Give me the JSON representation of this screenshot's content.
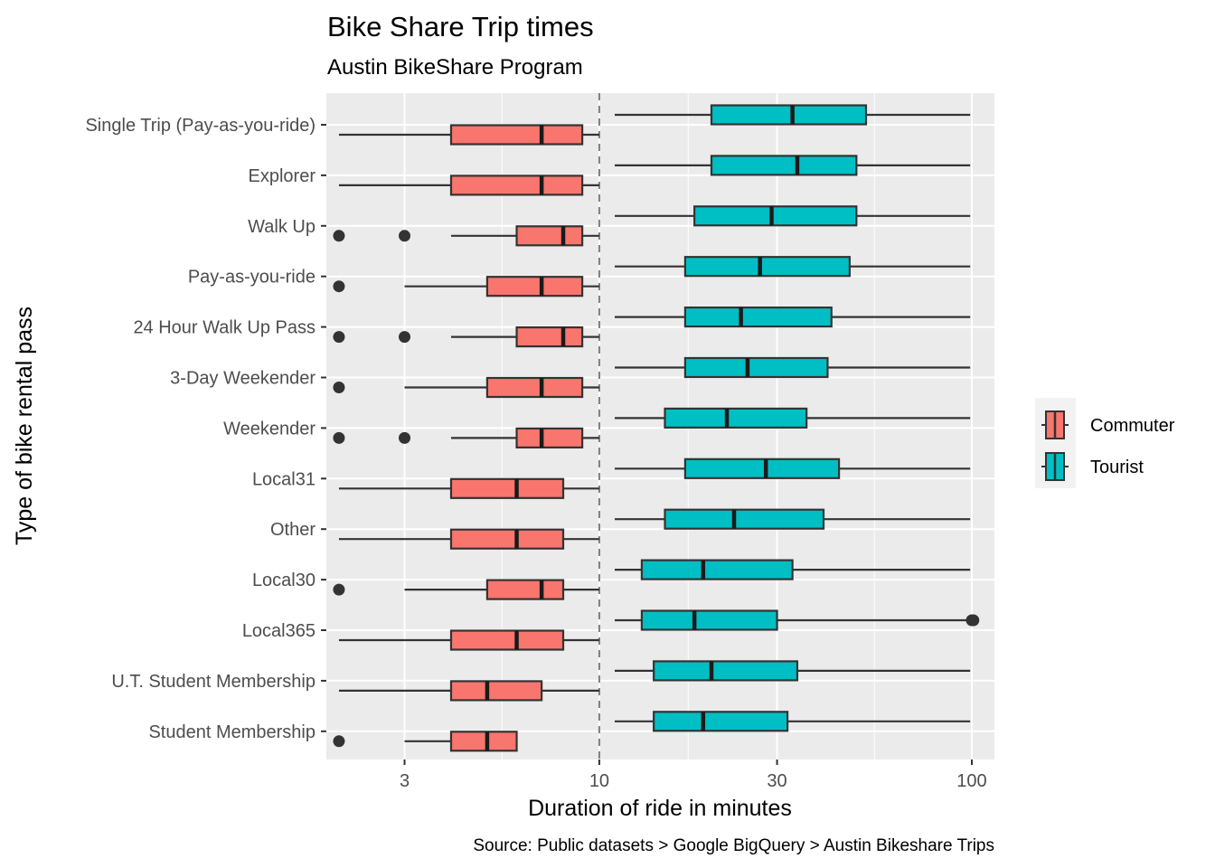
{
  "chart_data": {
    "type": "boxplot",
    "title": "Bike Share Trip times",
    "subtitle": "Austin BikeShare Program",
    "caption": "Source: Public datasets > Google BigQuery > Austin Bikeshare Trips",
    "xlabel": "Duration of ride in minutes",
    "ylabel": "Type of bike rental pass",
    "x_scale": "log10",
    "xlim": [
      1.85,
      115
    ],
    "x_ticks": [
      3,
      10,
      30,
      100
    ],
    "x_tick_labels": [
      "3",
      "10",
      "30",
      "100"
    ],
    "reference_line": {
      "x": 10,
      "style": "dashed"
    },
    "grid": true,
    "legend_position": "right",
    "categories": [
      "Single Trip (Pay-as-you-ride)",
      "Explorer",
      "Walk Up",
      "Pay-as-you-ride",
      "24 Hour Walk Up Pass",
      "3-Day Weekender",
      "Weekender",
      "Local31",
      "Other",
      "Local30",
      "Local365",
      "U.T. Student Membership",
      "Student Membership"
    ],
    "series": [
      {
        "name": "Commuter",
        "color": "#F8766D",
        "boxes": [
          {
            "whisker_low": 2,
            "q1": 4,
            "median": 7,
            "q3": 9,
            "whisker_high": 10,
            "outliers": []
          },
          {
            "whisker_low": 2,
            "q1": 4,
            "median": 7,
            "q3": 9,
            "whisker_high": 10,
            "outliers": []
          },
          {
            "whisker_low": 4,
            "q1": 6,
            "median": 8,
            "q3": 9,
            "whisker_high": 10,
            "outliers": [
              2,
              3
            ]
          },
          {
            "whisker_low": 3,
            "q1": 5,
            "median": 7,
            "q3": 9,
            "whisker_high": 10,
            "outliers": [
              2
            ]
          },
          {
            "whisker_low": 4,
            "q1": 6,
            "median": 8,
            "q3": 9,
            "whisker_high": 10,
            "outliers": [
              2,
              3
            ]
          },
          {
            "whisker_low": 3,
            "q1": 5,
            "median": 7,
            "q3": 9,
            "whisker_high": 10,
            "outliers": [
              2
            ]
          },
          {
            "whisker_low": 4,
            "q1": 6,
            "median": 7,
            "q3": 9,
            "whisker_high": 10,
            "outliers": [
              2,
              3
            ]
          },
          {
            "whisker_low": 2,
            "q1": 4,
            "median": 6,
            "q3": 8,
            "whisker_high": 10,
            "outliers": []
          },
          {
            "whisker_low": 2,
            "q1": 4,
            "median": 6,
            "q3": 8,
            "whisker_high": 10,
            "outliers": []
          },
          {
            "whisker_low": 3,
            "q1": 5,
            "median": 7,
            "q3": 8,
            "whisker_high": 10,
            "outliers": [
              2
            ]
          },
          {
            "whisker_low": 2,
            "q1": 4,
            "median": 6,
            "q3": 8,
            "whisker_high": 10,
            "outliers": []
          },
          {
            "whisker_low": 2,
            "q1": 4,
            "median": 5,
            "q3": 7,
            "whisker_high": 10,
            "outliers": []
          },
          {
            "whisker_low": 3,
            "q1": 4,
            "median": 5,
            "q3": 6,
            "whisker_high": 6,
            "outliers": [
              2
            ]
          }
        ]
      },
      {
        "name": "Tourist",
        "color": "#00BFC4",
        "boxes": [
          {
            "whisker_low": 11,
            "q1": 20,
            "median": 33,
            "q3": 52,
            "whisker_high": 99,
            "outliers": []
          },
          {
            "whisker_low": 11,
            "q1": 20,
            "median": 34,
            "q3": 49,
            "whisker_high": 99,
            "outliers": []
          },
          {
            "whisker_low": 11,
            "q1": 18,
            "median": 29,
            "q3": 49,
            "whisker_high": 99,
            "outliers": []
          },
          {
            "whisker_low": 11,
            "q1": 17,
            "median": 27,
            "q3": 47,
            "whisker_high": 99,
            "outliers": []
          },
          {
            "whisker_low": 11,
            "q1": 17,
            "median": 24,
            "q3": 42,
            "whisker_high": 99,
            "outliers": []
          },
          {
            "whisker_low": 11,
            "q1": 17,
            "median": 25,
            "q3": 41,
            "whisker_high": 99,
            "outliers": []
          },
          {
            "whisker_low": 11,
            "q1": 15,
            "median": 22,
            "q3": 36,
            "whisker_high": 99,
            "outliers": []
          },
          {
            "whisker_low": 11,
            "q1": 17,
            "median": 28,
            "q3": 44,
            "whisker_high": 99,
            "outliers": []
          },
          {
            "whisker_low": 11,
            "q1": 15,
            "median": 23,
            "q3": 40,
            "whisker_high": 99,
            "outliers": []
          },
          {
            "whisker_low": 11,
            "q1": 13,
            "median": 19,
            "q3": 33,
            "whisker_high": 99,
            "outliers": []
          },
          {
            "whisker_low": 11,
            "q1": 13,
            "median": 18,
            "q3": 30,
            "whisker_high": 99,
            "outliers": [
              100,
              101
            ]
          },
          {
            "whisker_low": 11,
            "q1": 14,
            "median": 20,
            "q3": 34,
            "whisker_high": 99,
            "outliers": []
          },
          {
            "whisker_low": 11,
            "q1": 14,
            "median": 19,
            "q3": 32,
            "whisker_high": 99,
            "outliers": []
          }
        ]
      }
    ]
  }
}
